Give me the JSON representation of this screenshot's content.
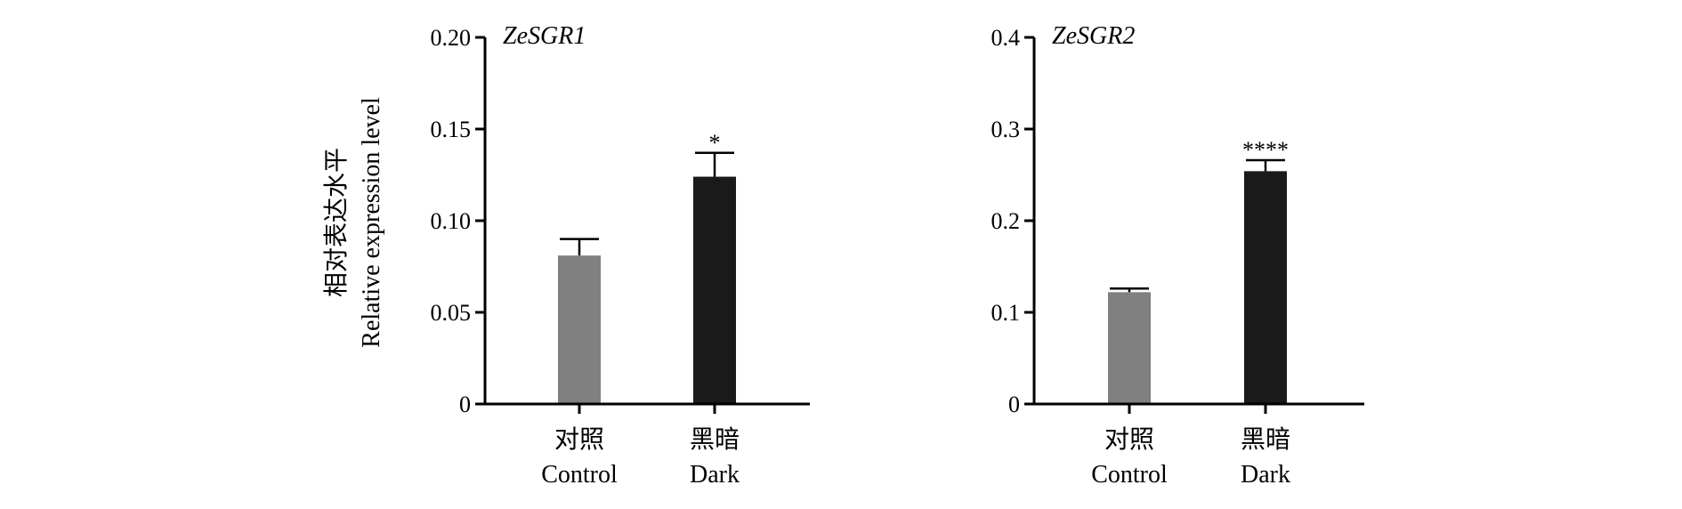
{
  "figure": {
    "ylabel_zh": "相对表达水平",
    "ylabel_en": "Relative expression level"
  },
  "chart_data": [
    {
      "type": "bar",
      "title": "ZeSGR1",
      "categories_zh": [
        "对照",
        "黑暗"
      ],
      "categories_en": [
        "Control",
        "Dark"
      ],
      "values": [
        0.081,
        0.124
      ],
      "errors": [
        0.009,
        0.013
      ],
      "significance": [
        "",
        "*"
      ],
      "bar_colors": [
        "#808080",
        "#1a1a1a"
      ],
      "ylim": [
        0,
        0.2
      ],
      "yticks": [
        0,
        0.05,
        0.1,
        0.15,
        0.2
      ],
      "ytick_labels": [
        "0",
        "0.05",
        "0.10",
        "0.15",
        "0.20"
      ]
    },
    {
      "type": "bar",
      "title": "ZeSGR2",
      "categories_zh": [
        "对照",
        "黑暗"
      ],
      "categories_en": [
        "Control",
        "Dark"
      ],
      "values": [
        0.122,
        0.254
      ],
      "errors": [
        0.004,
        0.012
      ],
      "significance": [
        "",
        "****"
      ],
      "bar_colors": [
        "#808080",
        "#1a1a1a"
      ],
      "ylim": [
        0,
        0.4
      ],
      "yticks": [
        0,
        0.1,
        0.2,
        0.3,
        0.4
      ],
      "ytick_labels": [
        "0",
        "0.1",
        "0.2",
        "0.3",
        "0.4"
      ]
    }
  ]
}
